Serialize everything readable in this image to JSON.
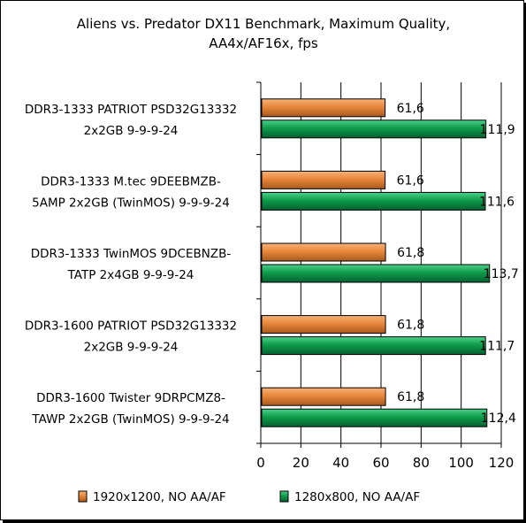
{
  "chart_data": {
    "type": "bar",
    "orientation": "horizontal",
    "title_lines": [
      "Aliens vs. Predator DX11 Benchmark, Maximum Quality,",
      "AA4x/AF16x, fps"
    ],
    "categories": [
      [
        "DDR3-1333 PATRIOT PSD32G13332",
        "2x2GB 9-9-9-24"
      ],
      [
        "DDR3-1333 M.tec 9DEEBMZB-",
        "5AMP 2x2GB (TwinMOS) 9-9-9-24"
      ],
      [
        "DDR3-1333 TwinMOS 9DCEBNZB-",
        "TATP  2x4GB 9-9-9-24"
      ],
      [
        "DDR3-1600 PATRIOT PSD32G13332",
        "2x2GB 9-9-9-24"
      ],
      [
        "DDR3-1600 Twister 9DRPCMZ8-",
        "TAWP 2x2GB (TwinMOS) 9-9-9-24"
      ]
    ],
    "series": [
      {
        "name": "1920x1200, NO AA/AF",
        "color": "#E8873A",
        "values": [
          61.6,
          61.6,
          61.8,
          61.8,
          61.8
        ],
        "labels": [
          "61,6",
          "61,6",
          "61,8",
          "61,8",
          "61,8"
        ]
      },
      {
        "name": "1280x800, NO AA/AF",
        "color": "#0E9C4A",
        "values": [
          111.9,
          111.6,
          113.7,
          111.7,
          112.4
        ],
        "labels": [
          "111,9",
          "111,6",
          "113,7",
          "111,7",
          "112,4"
        ]
      }
    ],
    "xlim": [
      0,
      120
    ],
    "xticks": [
      0,
      20,
      40,
      60,
      80,
      100,
      120
    ],
    "grid": true,
    "legend_position": "bottom"
  }
}
